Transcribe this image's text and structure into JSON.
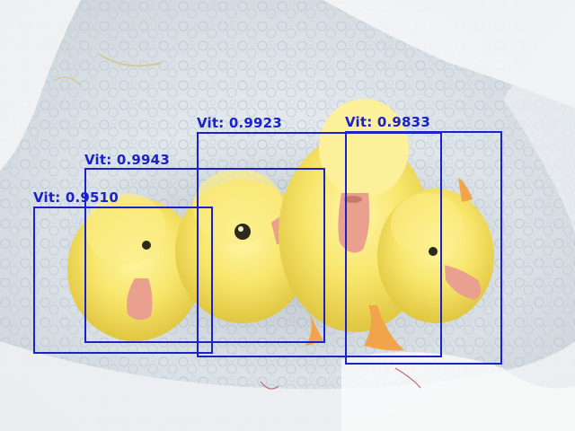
{
  "image": {
    "description_hidden": false,
    "subject": "ducklings on fleece blanket"
  },
  "colors": {
    "box": "#1a22c8"
  },
  "detections": [
    {
      "label": "Vit",
      "score": "0.9510",
      "text": "Vit: 0.9510"
    },
    {
      "label": "Vit",
      "score": "0.9943",
      "text": "Vit: 0.9943"
    },
    {
      "label": "Vit",
      "score": "0.9923",
      "text": "Vit: 0.9923"
    },
    {
      "label": "Vit",
      "score": "0.9833",
      "text": "Vit: 0.9833"
    }
  ]
}
